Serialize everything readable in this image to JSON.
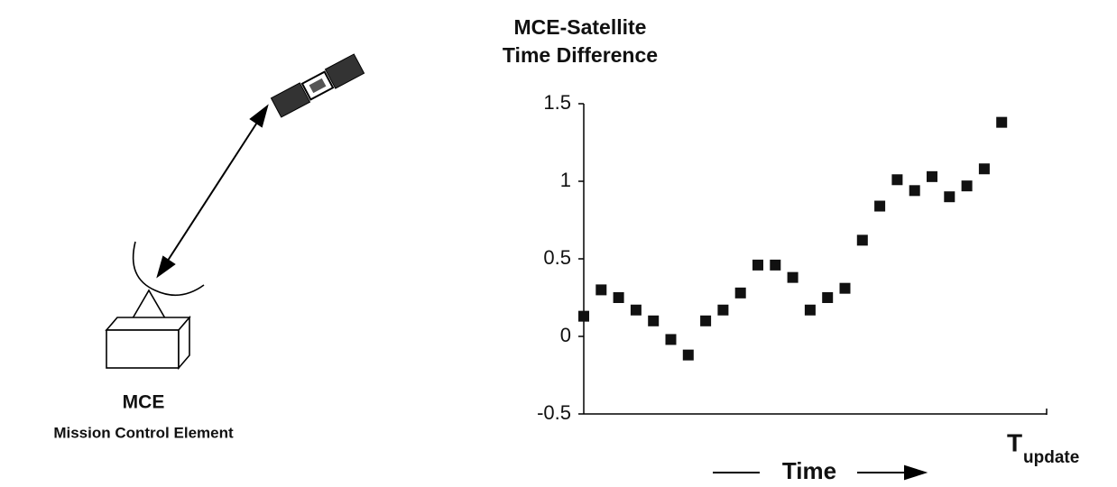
{
  "diagram": {
    "station_label": "MCE",
    "station_caption": "Mission Control Element"
  },
  "chart_data": {
    "type": "scatter",
    "title_lines": [
      "MCE-Satellite",
      "Time Difference"
    ],
    "x_label": "Time",
    "x_end_label": {
      "main": "T",
      "subscript": "update"
    },
    "categories": [
      null,
      null,
      null,
      null,
      null,
      null,
      null,
      null,
      null,
      null,
      null,
      null,
      null,
      null,
      null,
      null,
      null,
      null,
      null,
      null,
      null,
      null,
      null,
      null,
      null
    ],
    "values": [
      0.13,
      0.3,
      0.25,
      0.17,
      0.1,
      -0.02,
      -0.12,
      0.1,
      0.17,
      0.28,
      0.46,
      0.46,
      0.38,
      0.17,
      0.25,
      0.31,
      0.62,
      0.84,
      1.01,
      0.94,
      1.03,
      0.9,
      0.97,
      1.08,
      1.38
    ],
    "color": "#111111",
    "ylim": [
      -0.5,
      1.5
    ],
    "yticks": [
      1.5,
      1,
      0.5,
      0,
      -0.5
    ],
    "grid": false
  }
}
